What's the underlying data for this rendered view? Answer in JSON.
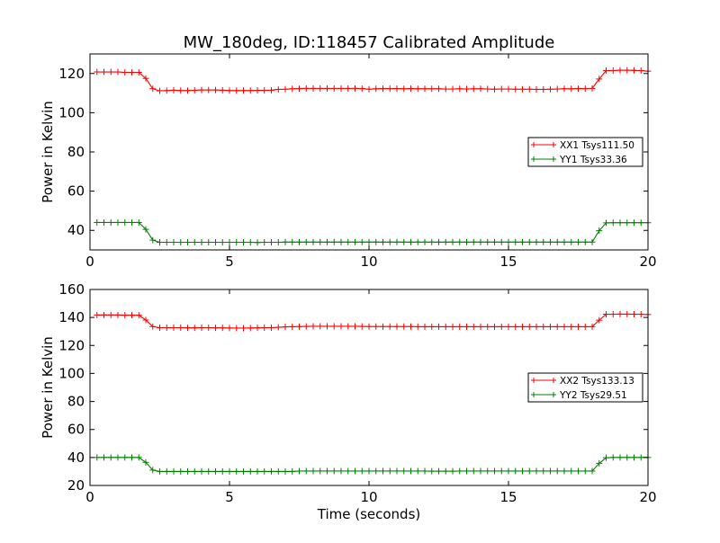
{
  "figure_title": "MW_180deg, ID:118457 Calibrated Amplitude",
  "colors": {
    "xx": "#ff0000",
    "yy": "#008000",
    "axes": "#000000",
    "background": "#ffffff"
  },
  "chart_data": [
    {
      "type": "line",
      "title": "MW_180deg, ID:118457 Calibrated Amplitude",
      "xlabel": "",
      "ylabel": "Power in Kelvin",
      "xlim": [
        0,
        20
      ],
      "ylim": [
        30,
        130
      ],
      "xticks": [
        "0",
        "5",
        "10",
        "15",
        "20"
      ],
      "yticks": [
        "40",
        "60",
        "80",
        "100",
        "120"
      ],
      "grid": false,
      "legend_position": "center-right",
      "marker": "+",
      "series": [
        {
          "name": "XX1 Tsys111.50",
          "color": "#ff0000",
          "x": [
            0.25,
            0.5,
            0.75,
            1.0,
            1.25,
            1.5,
            1.75,
            2.0,
            2.25,
            2.5,
            2.75,
            3.0,
            3.25,
            3.5,
            3.75,
            4.0,
            4.25,
            4.5,
            4.75,
            5.0,
            5.25,
            5.5,
            5.75,
            6.0,
            6.25,
            6.5,
            6.75,
            7.0,
            7.25,
            7.5,
            7.75,
            8.0,
            8.25,
            8.5,
            8.75,
            9.0,
            9.25,
            9.5,
            9.75,
            10.0,
            10.25,
            10.5,
            10.75,
            11.0,
            11.25,
            11.5,
            11.75,
            12.0,
            12.25,
            12.5,
            12.75,
            13.0,
            13.25,
            13.5,
            13.75,
            14.0,
            14.25,
            14.5,
            14.75,
            15.0,
            15.25,
            15.5,
            15.75,
            16.0,
            16.25,
            16.5,
            16.75,
            17.0,
            17.25,
            17.5,
            17.75,
            18.0,
            18.25,
            18.5,
            18.75,
            19.0,
            19.25,
            19.5,
            19.75,
            20.0
          ],
          "y": [
            120.8,
            120.8,
            120.8,
            120.8,
            120.6,
            120.6,
            120.6,
            117.5,
            112.2,
            111.2,
            111.3,
            111.5,
            111.3,
            111.3,
            111.4,
            111.6,
            111.6,
            111.6,
            111.5,
            111.3,
            111.3,
            111.3,
            111.3,
            111.4,
            111.4,
            111.5,
            111.9,
            112.0,
            112.2,
            112.3,
            112.4,
            112.4,
            112.4,
            112.4,
            112.4,
            112.4,
            112.4,
            112.4,
            112.3,
            112.0,
            112.2,
            112.3,
            112.3,
            112.3,
            112.2,
            112.3,
            112.2,
            112.2,
            112.2,
            112.2,
            112.1,
            112.1,
            112.2,
            112.1,
            112.2,
            112.2,
            112.1,
            112.0,
            112.1,
            112.1,
            112.0,
            112.0,
            112.0,
            111.9,
            111.9,
            112.0,
            112.1,
            112.2,
            112.2,
            112.3,
            112.3,
            112.4,
            117.2,
            121.5,
            121.5,
            121.7,
            121.7,
            121.6,
            121.5,
            121.2
          ]
        },
        {
          "name": "YY1 Tsys33.36",
          "color": "#008000",
          "x": [
            0.25,
            0.5,
            0.75,
            1.0,
            1.25,
            1.5,
            1.75,
            2.0,
            2.25,
            2.5,
            2.75,
            3.0,
            3.25,
            3.5,
            3.75,
            4.0,
            4.25,
            4.5,
            4.75,
            5.0,
            5.25,
            5.5,
            5.75,
            6.0,
            6.25,
            6.5,
            6.75,
            7.0,
            7.25,
            7.5,
            7.75,
            8.0,
            8.25,
            8.5,
            8.75,
            9.0,
            9.25,
            9.5,
            9.75,
            10.0,
            10.25,
            10.5,
            10.75,
            11.0,
            11.25,
            11.5,
            11.75,
            12.0,
            12.25,
            12.5,
            12.75,
            13.0,
            13.25,
            13.5,
            13.75,
            14.0,
            14.25,
            14.5,
            14.75,
            15.0,
            15.25,
            15.5,
            15.75,
            16.0,
            16.25,
            16.5,
            16.75,
            17.0,
            17.25,
            17.5,
            17.75,
            18.0,
            18.25,
            18.5,
            18.75,
            19.0,
            19.25,
            19.5,
            19.75,
            20.0
          ],
          "y": [
            44.0,
            44.0,
            44.0,
            44.0,
            44.0,
            44.0,
            44.0,
            40.5,
            35.0,
            33.9,
            33.9,
            33.9,
            33.9,
            33.9,
            33.9,
            33.9,
            33.9,
            33.9,
            33.9,
            33.9,
            33.9,
            33.9,
            33.9,
            33.8,
            33.9,
            33.9,
            33.9,
            34.0,
            34.0,
            34.0,
            34.0,
            34.0,
            34.0,
            34.0,
            34.0,
            34.0,
            34.0,
            34.0,
            34.0,
            34.0,
            34.0,
            34.0,
            34.0,
            34.0,
            34.0,
            34.0,
            34.0,
            34.0,
            34.0,
            34.0,
            34.0,
            34.0,
            34.0,
            34.0,
            34.0,
            34.0,
            34.0,
            34.0,
            34.0,
            34.0,
            34.0,
            34.0,
            34.0,
            34.0,
            34.0,
            34.0,
            34.0,
            34.0,
            34.0,
            34.0,
            34.0,
            34.0,
            39.8,
            43.8,
            43.9,
            43.9,
            43.9,
            43.9,
            43.9,
            43.9
          ]
        }
      ]
    },
    {
      "type": "line",
      "title": "",
      "xlabel": "Time (seconds)",
      "ylabel": "Power in Kelvin",
      "xlim": [
        0,
        20
      ],
      "ylim": [
        20,
        160
      ],
      "xticks": [
        "0",
        "5",
        "10",
        "15",
        "20"
      ],
      "yticks": [
        "20",
        "40",
        "60",
        "80",
        "100",
        "120",
        "140",
        "160"
      ],
      "grid": false,
      "legend_position": "center-right",
      "marker": "+",
      "series": [
        {
          "name": "XX2 Tsys133.13",
          "color": "#ff0000",
          "x": [
            0.25,
            0.5,
            0.75,
            1.0,
            1.25,
            1.5,
            1.75,
            2.0,
            2.25,
            2.5,
            2.75,
            3.0,
            3.25,
            3.5,
            3.75,
            4.0,
            4.25,
            4.5,
            4.75,
            5.0,
            5.25,
            5.5,
            5.75,
            6.0,
            6.25,
            6.5,
            6.75,
            7.0,
            7.25,
            7.5,
            7.75,
            8.0,
            8.25,
            8.5,
            8.75,
            9.0,
            9.25,
            9.5,
            9.75,
            10.0,
            10.25,
            10.5,
            10.75,
            11.0,
            11.25,
            11.5,
            11.75,
            12.0,
            12.25,
            12.5,
            12.75,
            13.0,
            13.25,
            13.5,
            13.75,
            14.0,
            14.25,
            14.5,
            14.75,
            15.0,
            15.25,
            15.5,
            15.75,
            16.0,
            16.25,
            16.5,
            16.75,
            17.0,
            17.25,
            17.5,
            17.75,
            18.0,
            18.25,
            18.5,
            18.75,
            19.0,
            19.25,
            19.5,
            19.75,
            20.0
          ],
          "y": [
            141.8,
            141.8,
            141.8,
            141.8,
            141.6,
            141.6,
            141.6,
            138.2,
            133.5,
            132.7,
            132.7,
            132.7,
            132.7,
            132.6,
            132.6,
            132.7,
            132.7,
            132.6,
            132.6,
            132.5,
            132.4,
            132.4,
            132.5,
            132.6,
            132.7,
            132.7,
            133.0,
            133.3,
            133.4,
            133.5,
            133.6,
            133.7,
            133.7,
            133.7,
            133.7,
            133.7,
            133.7,
            133.7,
            133.6,
            133.5,
            133.5,
            133.5,
            133.5,
            133.5,
            133.5,
            133.5,
            133.4,
            133.4,
            133.4,
            133.4,
            133.4,
            133.4,
            133.4,
            133.4,
            133.4,
            133.4,
            133.4,
            133.4,
            133.4,
            133.4,
            133.4,
            133.4,
            133.4,
            133.4,
            133.4,
            133.4,
            133.4,
            133.4,
            133.4,
            133.4,
            133.4,
            133.4,
            138.1,
            142.3,
            142.3,
            142.4,
            142.4,
            142.3,
            142.3,
            142.1
          ]
        },
        {
          "name": "YY2 Tsys29.51",
          "color": "#008000",
          "x": [
            0.25,
            0.5,
            0.75,
            1.0,
            1.25,
            1.5,
            1.75,
            2.0,
            2.25,
            2.5,
            2.75,
            3.0,
            3.25,
            3.5,
            3.75,
            4.0,
            4.25,
            4.5,
            4.75,
            5.0,
            5.25,
            5.5,
            5.75,
            6.0,
            6.25,
            6.5,
            6.75,
            7.0,
            7.25,
            7.5,
            7.75,
            8.0,
            8.25,
            8.5,
            8.75,
            9.0,
            9.25,
            9.5,
            9.75,
            10.0,
            10.25,
            10.5,
            10.75,
            11.0,
            11.25,
            11.5,
            11.75,
            12.0,
            12.25,
            12.5,
            12.75,
            13.0,
            13.25,
            13.5,
            13.75,
            14.0,
            14.25,
            14.5,
            14.75,
            15.0,
            15.25,
            15.5,
            15.75,
            16.0,
            16.25,
            16.5,
            16.75,
            17.0,
            17.25,
            17.5,
            17.75,
            18.0,
            18.25,
            18.5,
            18.75,
            19.0,
            19.25,
            19.5,
            19.75,
            20.0
          ],
          "y": [
            40.0,
            40.0,
            40.0,
            40.0,
            40.0,
            40.0,
            40.0,
            36.5,
            31.0,
            30.0,
            30.0,
            30.0,
            30.0,
            30.0,
            30.0,
            30.0,
            30.0,
            30.0,
            30.0,
            30.0,
            30.0,
            30.0,
            30.0,
            30.0,
            30.0,
            30.0,
            30.0,
            30.0,
            30.0,
            30.3,
            30.3,
            30.3,
            30.3,
            30.3,
            30.3,
            30.3,
            30.3,
            30.3,
            30.3,
            30.3,
            30.3,
            30.3,
            30.3,
            30.3,
            30.3,
            30.3,
            30.3,
            30.3,
            30.2,
            30.2,
            30.2,
            30.2,
            30.3,
            30.3,
            30.3,
            30.3,
            30.3,
            30.3,
            30.3,
            30.3,
            30.3,
            30.3,
            30.3,
            30.3,
            30.3,
            30.3,
            30.3,
            30.3,
            30.3,
            30.3,
            30.3,
            30.3,
            35.8,
            39.8,
            40.0,
            40.0,
            40.0,
            40.0,
            40.0,
            40.0
          ]
        }
      ]
    }
  ]
}
